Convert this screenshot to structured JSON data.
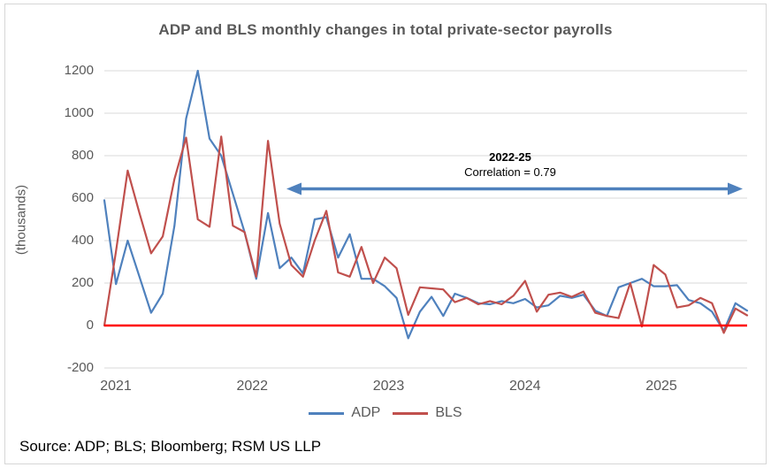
{
  "title": "ADP and BLS monthly changes in total private-sector payrolls",
  "y_axis_title": "(thousands)",
  "source": "Source: ADP; BLS; Bloomberg; RSM US LLP",
  "annotation": {
    "period": "2022-25",
    "correlation": "Correlation = 0.79"
  },
  "colors": {
    "adp_line": "#4F81BD",
    "bls_line": "#C0504D",
    "zero_line": "#FF0000",
    "arrow": "#4F81BD",
    "gridline": "#D9D9D9",
    "text_gray": "#595959"
  },
  "chart_data": {
    "type": "line",
    "title": "ADP and BLS monthly changes in total private-sector payrolls",
    "ylabel": "(thousands)",
    "xlabel": "",
    "ylim": [
      -200,
      1200
    ],
    "y_ticks": [
      1200,
      1000,
      800,
      600,
      400,
      200,
      0,
      -200
    ],
    "x_tick_labels": [
      "2021",
      "2022",
      "2023",
      "2024",
      "2025"
    ],
    "grid": "horizontal",
    "legend_position": "bottom",
    "frequency": "monthly",
    "x": [
      "2021-01",
      "2021-02",
      "2021-03",
      "2021-04",
      "2021-05",
      "2021-06",
      "2021-07",
      "2021-08",
      "2021-09",
      "2021-10",
      "2021-11",
      "2021-12",
      "2022-01",
      "2022-02",
      "2022-03",
      "2022-04",
      "2022-05",
      "2022-06",
      "2022-07",
      "2022-08",
      "2022-09",
      "2022-10",
      "2022-11",
      "2022-12",
      "2023-01",
      "2023-02",
      "2023-03",
      "2023-04",
      "2023-05",
      "2023-06",
      "2023-07",
      "2023-08",
      "2023-09",
      "2023-10",
      "2023-11",
      "2023-12",
      "2024-01",
      "2024-02",
      "2024-03",
      "2024-04",
      "2024-05",
      "2024-06",
      "2024-07",
      "2024-08",
      "2024-09",
      "2024-10",
      "2024-11",
      "2024-12",
      "2025-01",
      "2025-02",
      "2025-03",
      "2025-04",
      "2025-05",
      "2025-06",
      "2025-07",
      "2025-08"
    ],
    "series": [
      {
        "name": "ADP",
        "color": "#4F81BD",
        "values": [
          590,
          195,
          400,
          230,
          60,
          150,
          470,
          975,
          1200,
          880,
          800,
          620,
          440,
          220,
          530,
          270,
          320,
          245,
          500,
          510,
          320,
          430,
          220,
          220,
          185,
          130,
          -60,
          65,
          135,
          45,
          150,
          130,
          105,
          100,
          115,
          105,
          125,
          85,
          95,
          140,
          130,
          145,
          70,
          45,
          180,
          200,
          220,
          185,
          185,
          190,
          120,
          105,
          65,
          -25,
          105,
          70
        ]
      },
      {
        "name": "BLS",
        "color": "#C0504D",
        "values": [
          0,
          350,
          730,
          530,
          340,
          420,
          690,
          885,
          500,
          465,
          890,
          470,
          440,
          230,
          870,
          480,
          285,
          230,
          400,
          540,
          250,
          230,
          370,
          200,
          320,
          270,
          50,
          180,
          175,
          170,
          110,
          130,
          100,
          115,
          100,
          140,
          210,
          65,
          145,
          155,
          135,
          160,
          60,
          45,
          35,
          200,
          -5,
          285,
          240,
          85,
          95,
          130,
          105,
          -35,
          80,
          48
        ]
      }
    ],
    "zero_line": {
      "value": 0,
      "color": "#FF0000"
    },
    "annotation": {
      "text_line1": "2022-25",
      "text_line2": "Correlation = 0.79",
      "arrow_from_label": "2022",
      "arrow_to_label": "2025"
    }
  }
}
